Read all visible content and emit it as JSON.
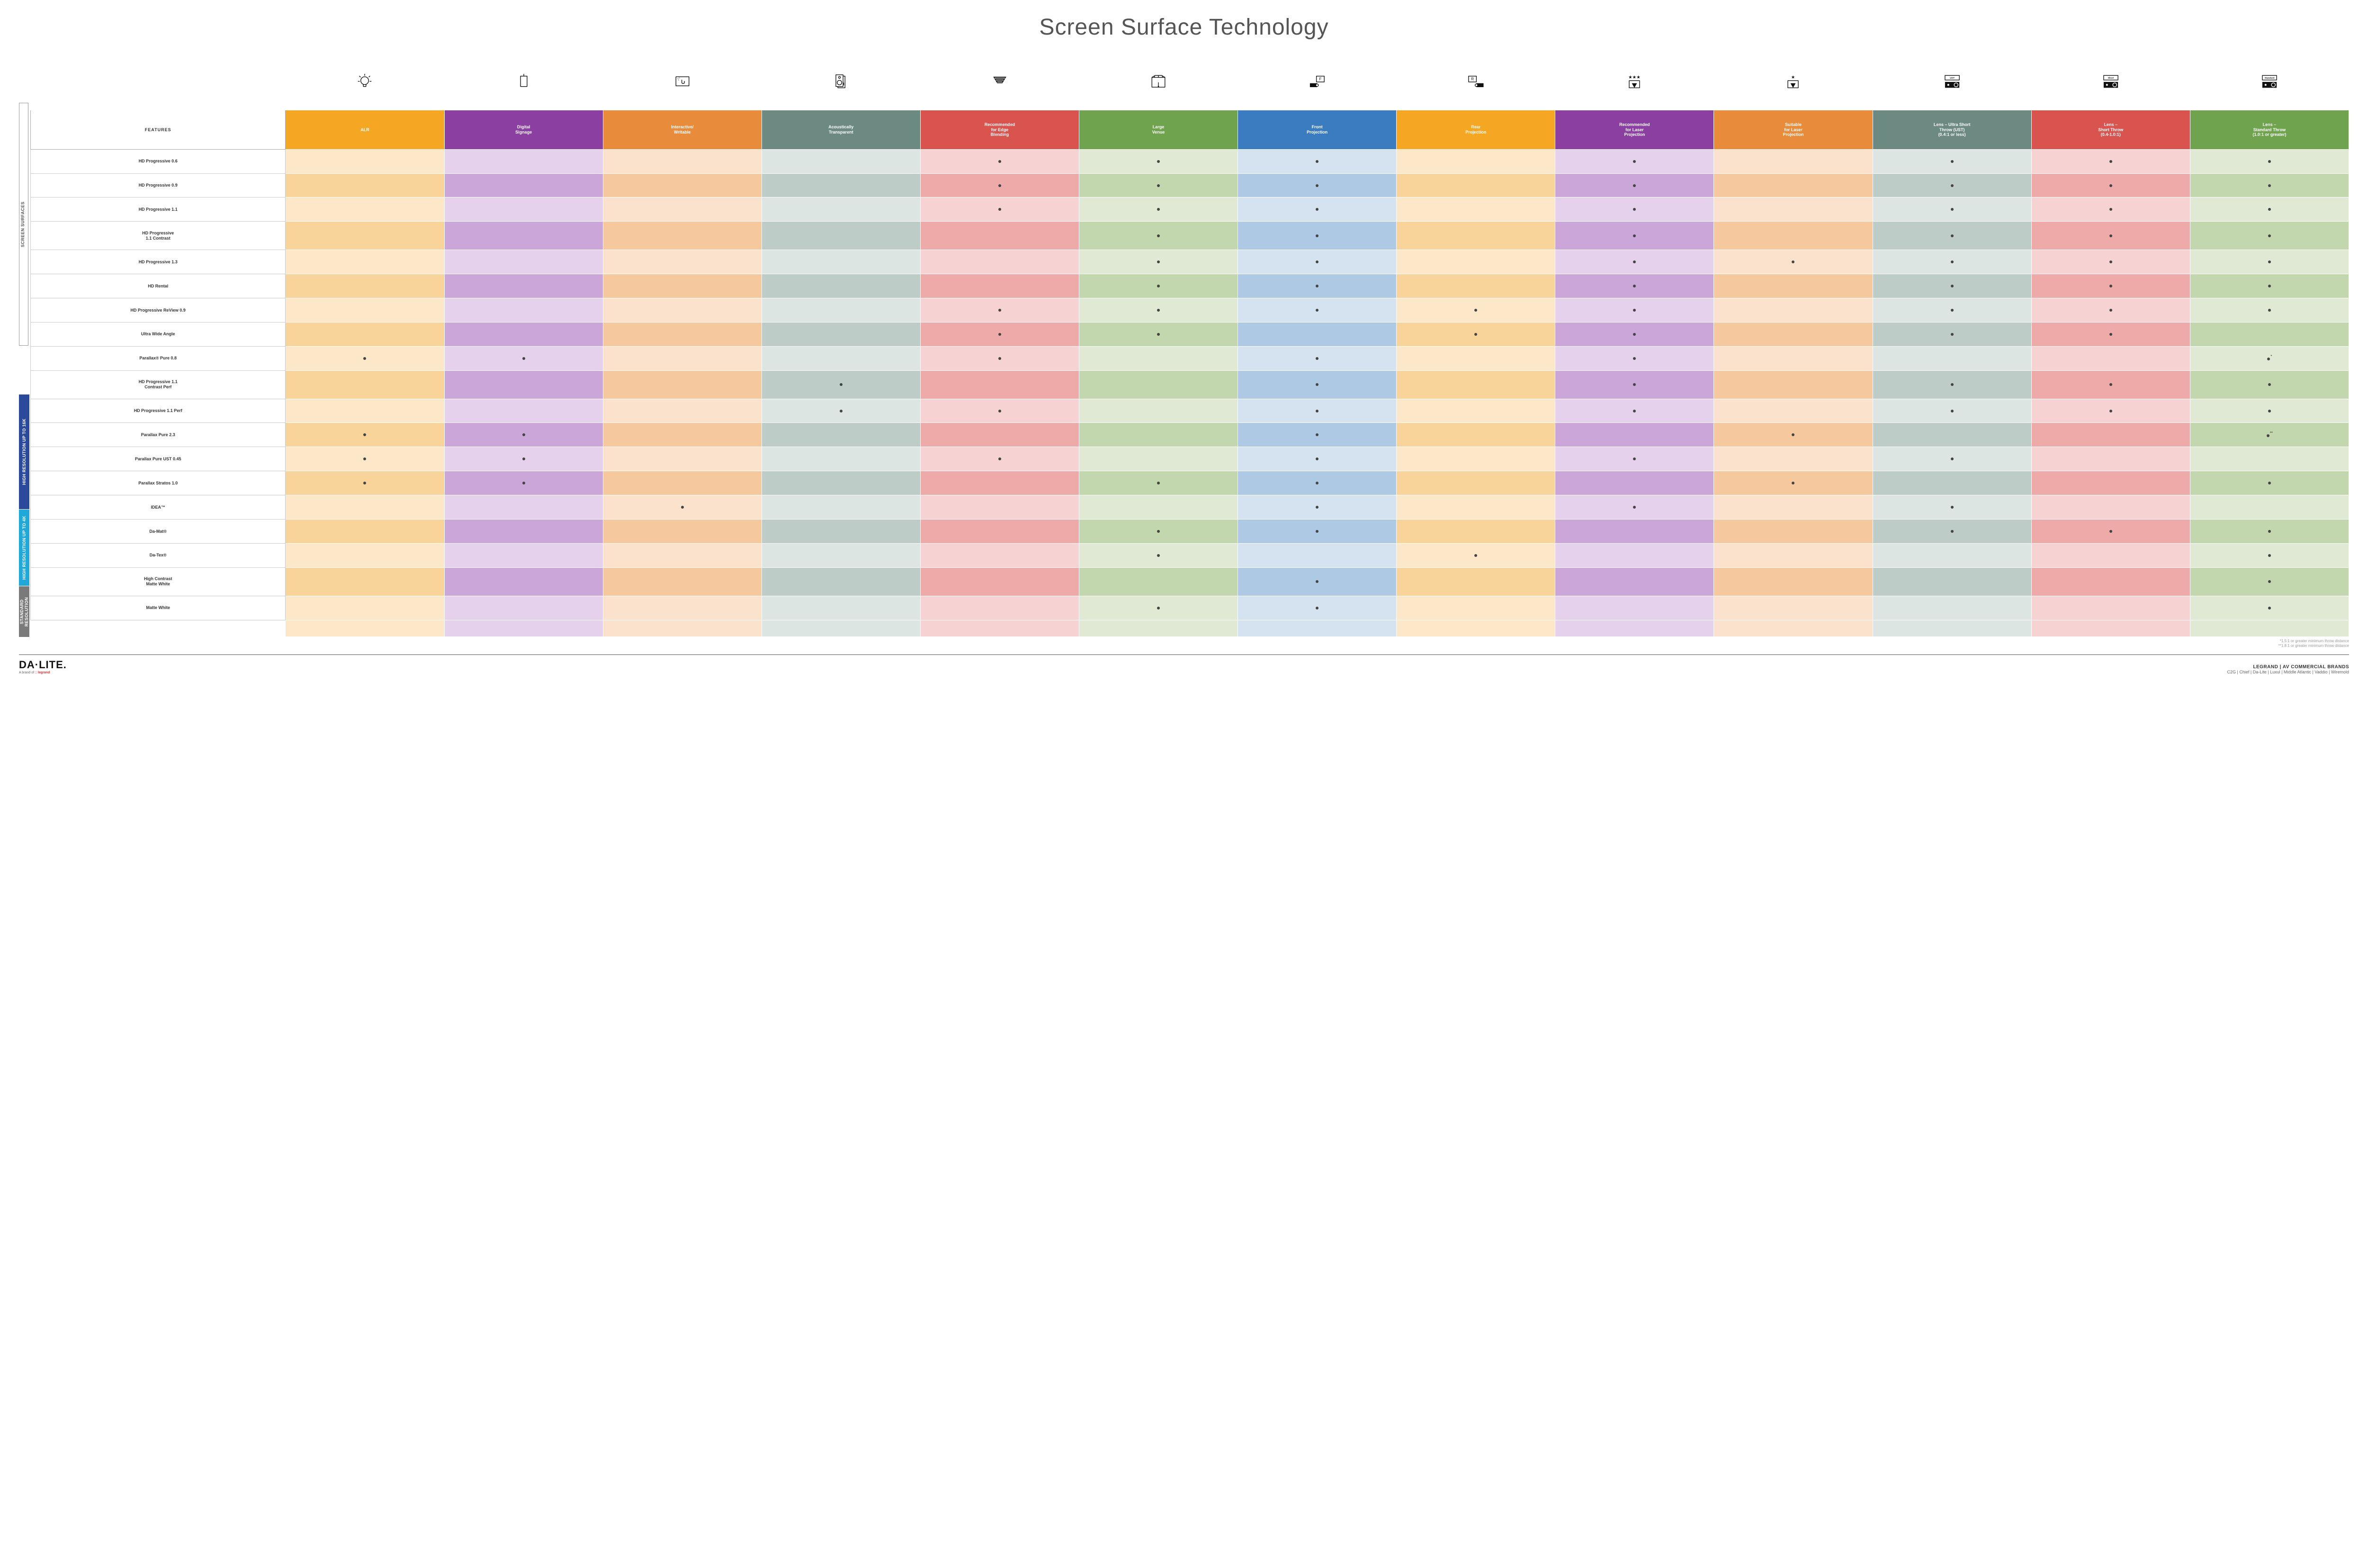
{
  "title": "Screen Surface Technology",
  "side_label": "SCREEN SURFACES",
  "groups": [
    {
      "label": "HIGH RESOLUTION UP TO 16K",
      "color": "#2b4a9b",
      "rows": 9
    },
    {
      "label": "HIGH RESOLUTION UP TO 4K",
      "color": "#1fa8d8",
      "rows": 6
    },
    {
      "label": "STANDARD RESOLUTION",
      "color": "#7a7a7a",
      "rows": 4
    }
  ],
  "columns": [
    {
      "key": "features",
      "label": "FEATURES",
      "header_bg": "#ffffff",
      "light": "#ffffff",
      "dark": "#ffffff",
      "icon": null
    },
    {
      "key": "alr",
      "label": "ALR",
      "header_bg": "#f5a623",
      "light": "#fce8c8",
      "dark": "#f8d49a",
      "icon": "bulb"
    },
    {
      "key": "signage",
      "label": "Digital\nSignage",
      "header_bg": "#8b3fa0",
      "light": "#e5d1ec",
      "dark": "#cba6d9",
      "icon": "signage"
    },
    {
      "key": "interactive",
      "label": "Interactive/\nWritable",
      "header_bg": "#e88b3a",
      "light": "#fae2cc",
      "dark": "#f5c89d",
      "icon": "touch"
    },
    {
      "key": "acoustic",
      "label": "Acoustically\nTransparent",
      "header_bg": "#6d8a82",
      "light": "#dce5e1",
      "dark": "#bdccc6",
      "icon": "speaker"
    },
    {
      "key": "edge",
      "label": "Recommended\nfor Edge\nBlending",
      "header_bg": "#d9534f",
      "light": "#f6d3d2",
      "dark": "#eeaaa8",
      "icon": "blend"
    },
    {
      "key": "venue",
      "label": "Large\nVenue",
      "header_bg": "#6fa34e",
      "light": "#dfe9d3",
      "dark": "#c3d7af",
      "icon": "venue"
    },
    {
      "key": "front",
      "label": "Front\nProjection",
      "header_bg": "#3b7bbf",
      "light": "#d5e2f0",
      "dark": "#aec9e3",
      "icon": "front"
    },
    {
      "key": "rear",
      "label": "Rear\nProjection",
      "header_bg": "#f5a623",
      "light": "#fce8c8",
      "dark": "#f8d49a",
      "icon": "rear"
    },
    {
      "key": "laser_rec",
      "label": "Recommended\nfor Laser\nProjection",
      "header_bg": "#8b3fa0",
      "light": "#e5d1ec",
      "dark": "#cba6d9",
      "icon": "laser3"
    },
    {
      "key": "laser_suit",
      "label": "Suitable\nfor Laser\nProjection",
      "header_bg": "#e88b3a",
      "light": "#fae2cc",
      "dark": "#f5c89d",
      "icon": "laser1"
    },
    {
      "key": "ust",
      "label": "Lens – Ultra Short\nThrow (UST)\n(0.4:1 or less)",
      "header_bg": "#6d8a82",
      "light": "#dce5e1",
      "dark": "#bdccc6",
      "icon": "proj_ust"
    },
    {
      "key": "short",
      "label": "Lens –\nShort Throw\n(0.4-1.0:1)",
      "header_bg": "#d9534f",
      "light": "#f6d3d2",
      "dark": "#eeaaa8",
      "icon": "proj_short"
    },
    {
      "key": "std",
      "label": "Lens –\nStandard Throw\n(1.0:1 or greater)",
      "header_bg": "#6fa34e",
      "light": "#dfe9d3",
      "dark": "#c3d7af",
      "icon": "proj_std"
    }
  ],
  "rows": [
    {
      "label": "HD Progressive 0.6",
      "dots": [
        "edge",
        "venue",
        "front",
        "laser_rec",
        "ust",
        "short",
        "std"
      ]
    },
    {
      "label": "HD Progressive 0.9",
      "dots": [
        "edge",
        "venue",
        "front",
        "laser_rec",
        "ust",
        "short",
        "std"
      ]
    },
    {
      "label": "HD Progressive 1.1",
      "dots": [
        "edge",
        "venue",
        "front",
        "laser_rec",
        "ust",
        "short",
        "std"
      ]
    },
    {
      "label": "HD Progressive\n1.1 Contrast",
      "dots": [
        "venue",
        "front",
        "laser_rec",
        "ust",
        "short",
        "std"
      ]
    },
    {
      "label": "HD Progressive 1.3",
      "dots": [
        "venue",
        "front",
        "laser_rec",
        "laser_suit",
        "ust",
        "short",
        "std"
      ]
    },
    {
      "label": "HD Rental",
      "dots": [
        "venue",
        "front",
        "laser_rec",
        "ust",
        "short",
        "std"
      ]
    },
    {
      "label": "HD Progressive ReView 0.9",
      "dots": [
        "edge",
        "venue",
        "front",
        "rear",
        "laser_rec",
        "ust",
        "short",
        "std"
      ]
    },
    {
      "label": "Ultra Wide Angle",
      "dots": [
        "edge",
        "venue",
        "rear",
        "laser_rec",
        "ust",
        "short"
      ]
    },
    {
      "label": "Parallax® Pure 0.8",
      "dots": [
        "alr",
        "signage",
        "edge",
        "front",
        "laser_rec",
        "std"
      ],
      "suffix_key": "std",
      "suffix": "*"
    },
    {
      "label": "HD Progressive 1.1\nContrast Perf",
      "dots": [
        "acoustic",
        "front",
        "laser_rec",
        "ust",
        "short",
        "std"
      ]
    },
    {
      "label": "HD Progressive 1.1 Perf",
      "dots": [
        "acoustic",
        "edge",
        "front",
        "laser_rec",
        "ust",
        "short",
        "std"
      ]
    },
    {
      "label": "Parallax Pure 2.3",
      "dots": [
        "alr",
        "signage",
        "front",
        "laser_suit",
        "std"
      ],
      "suffix_key": "std",
      "suffix": "**"
    },
    {
      "label": "Parallax Pure UST 0.45",
      "dots": [
        "alr",
        "signage",
        "edge",
        "front",
        "laser_rec",
        "ust"
      ]
    },
    {
      "label": "Parallax Stratos 1.0",
      "dots": [
        "alr",
        "signage",
        "venue",
        "front",
        "laser_suit",
        "std"
      ]
    },
    {
      "label": "IDEA™",
      "dots": [
        "interactive",
        "front",
        "laser_rec",
        "ust"
      ]
    },
    {
      "label": "Da-Mat®",
      "dots": [
        "venue",
        "front",
        "ust",
        "short",
        "std"
      ]
    },
    {
      "label": "Da-Tex®",
      "dots": [
        "venue",
        "rear",
        "std"
      ]
    },
    {
      "label": "High Contrast\nMatte White",
      "dots": [
        "front",
        "std"
      ]
    },
    {
      "label": "Matte White",
      "dots": [
        "venue",
        "front",
        "std"
      ]
    }
  ],
  "footnotes": [
    "*1.5:1 or greater minimum throw distance",
    "**1.8:1 or greater minimum throw distance"
  ],
  "footer": {
    "logo_main": "DA·LITE.",
    "logo_sub_prefix": "A brand of ",
    "logo_sub_brand": "legrand",
    "brands_title": "LEGRAND | AV COMMERCIAL BRANDS",
    "brands_list": "C2G  |  Chief  |  Da-Lite  |  Luxul  |  Middle Atlantic  |  Vaddio  |  Wiremold"
  },
  "proj_labels": {
    "ust": "UST",
    "short": "Short",
    "std": "Standard"
  }
}
